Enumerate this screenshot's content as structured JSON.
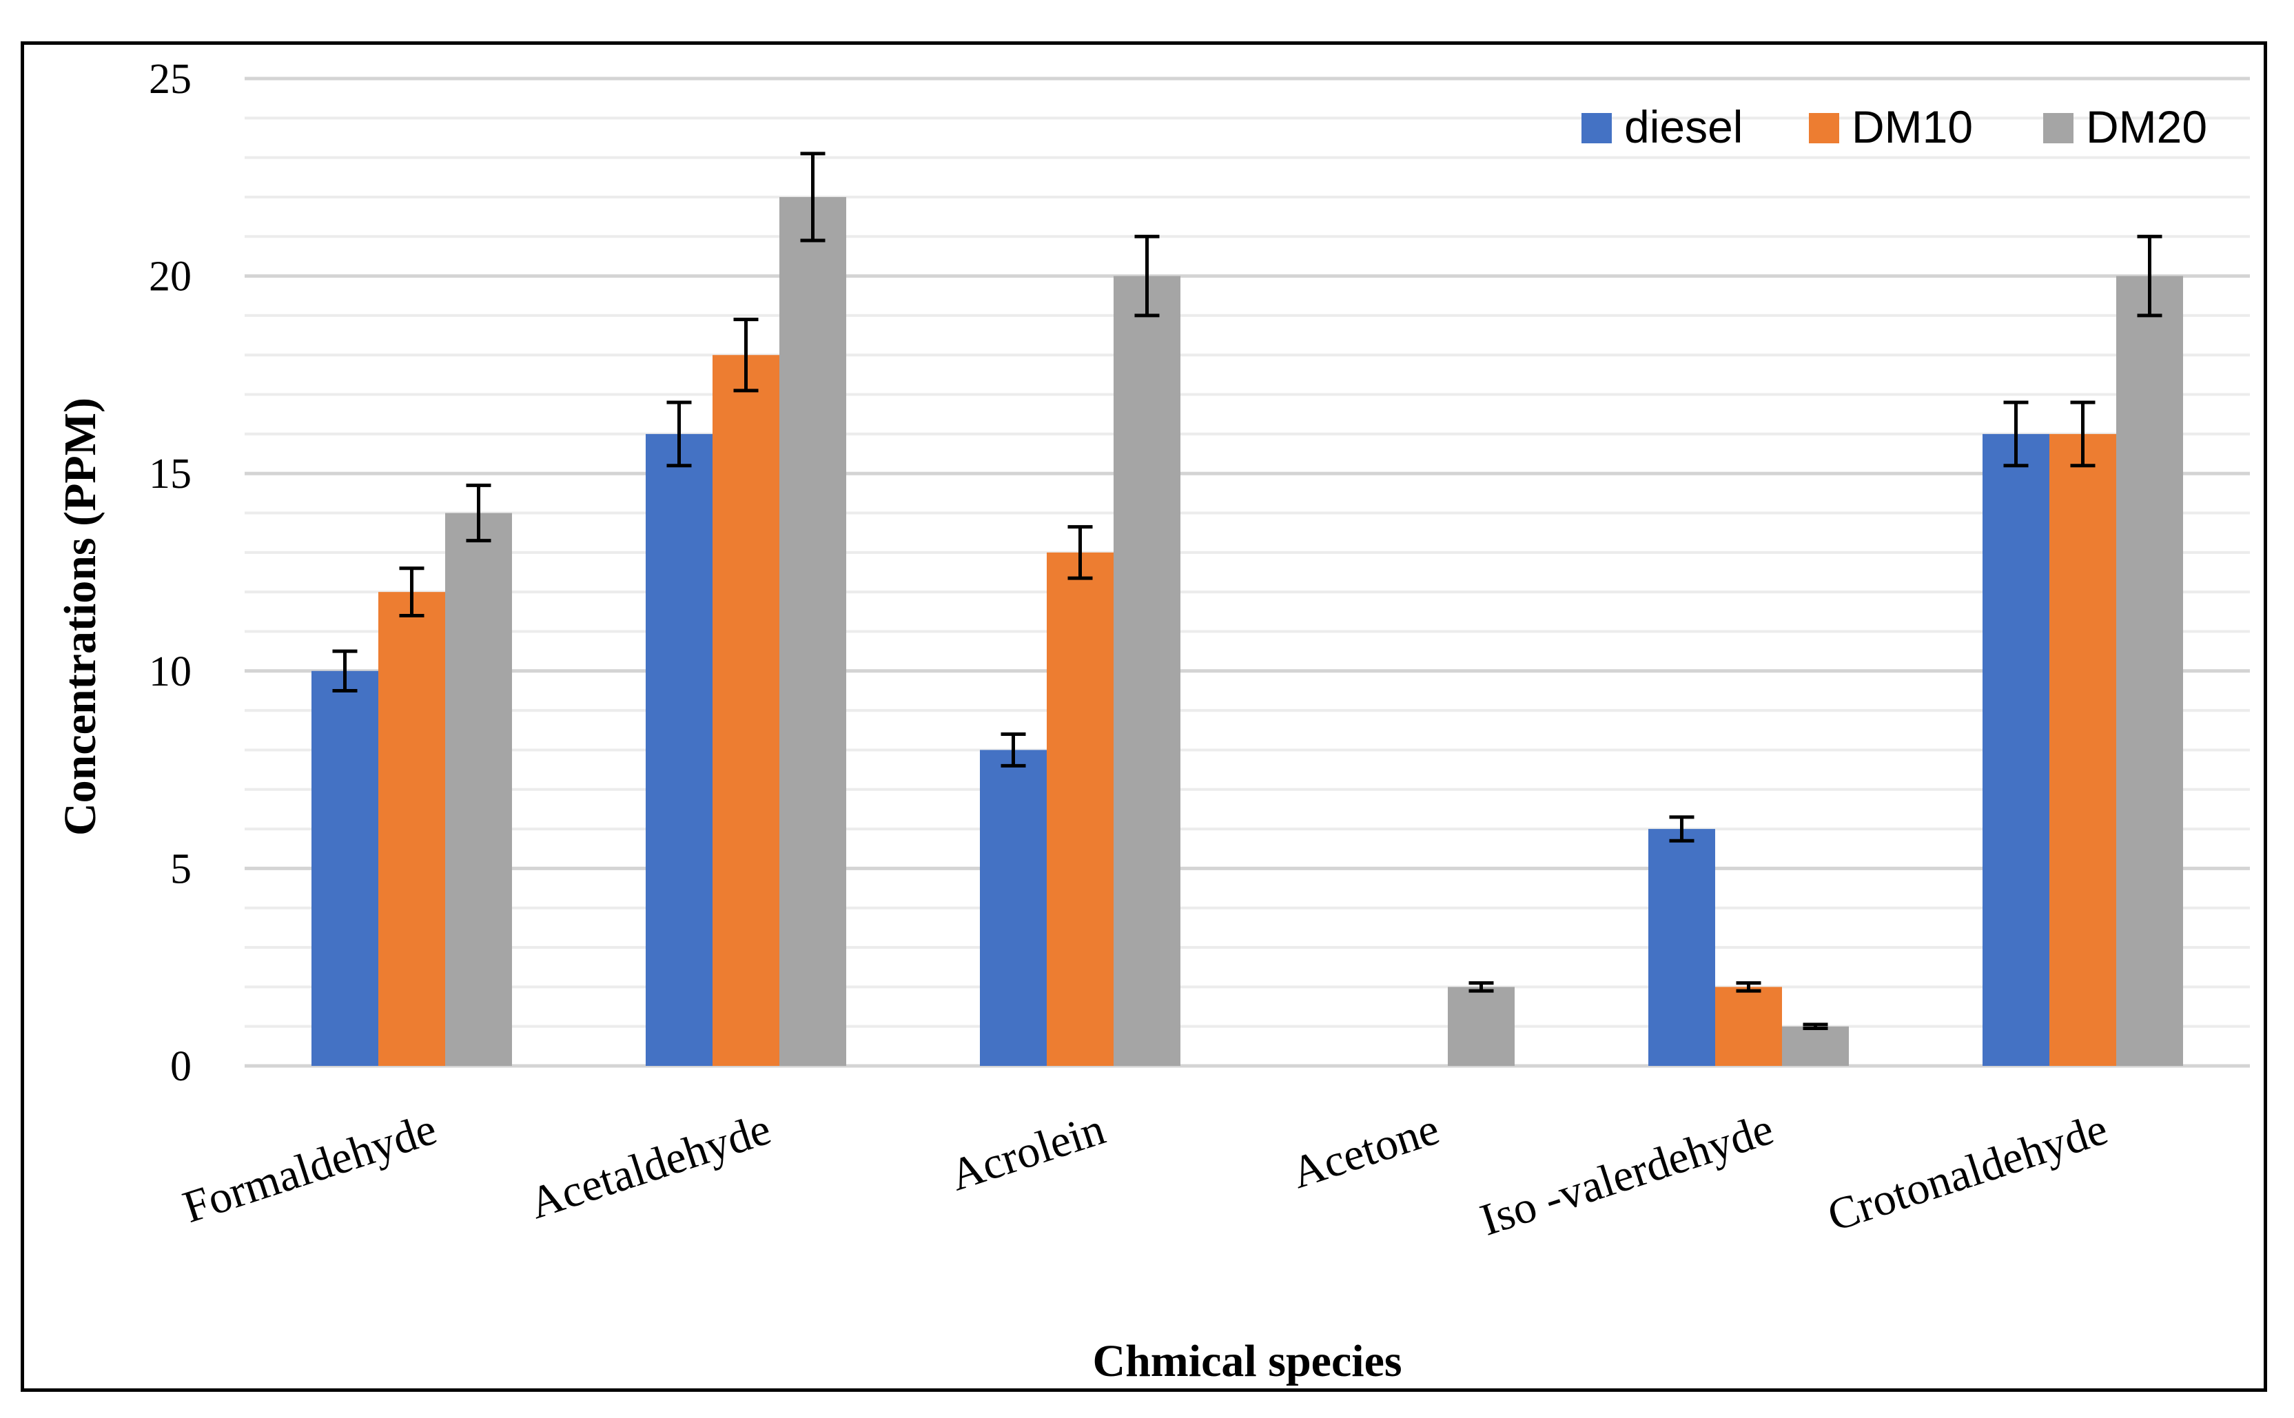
{
  "chart_data": {
    "type": "bar",
    "title": "",
    "xlabel": "Chmical species",
    "ylabel": "Concentrations (PPM)",
    "ylim": [
      0,
      25
    ],
    "yticks": [
      0,
      5,
      10,
      15,
      20,
      25
    ],
    "minor_grid_step": 1,
    "grid": true,
    "legend_position": "top-right",
    "categories": [
      "Formaldehyde",
      "Acetaldehyde",
      "Acrolein",
      "Acetone",
      "Iso -valerdehyde",
      "Crotonaldehyde"
    ],
    "series": [
      {
        "name": "diesel",
        "color": "#4472C4",
        "values": [
          10,
          16,
          8,
          0,
          6,
          16
        ],
        "errors": [
          0.5,
          0.8,
          0.4,
          0,
          0.3,
          0.8
        ]
      },
      {
        "name": "DM10",
        "color": "#ED7D31",
        "values": [
          12,
          18,
          13,
          0,
          2,
          16
        ],
        "errors": [
          0.6,
          0.9,
          0.65,
          0,
          0.1,
          0.8
        ]
      },
      {
        "name": "DM20",
        "color": "#A5A5A5",
        "values": [
          14,
          22,
          20,
          2,
          1,
          20
        ],
        "errors": [
          0.7,
          1.1,
          1.0,
          0.1,
          0.05,
          1.0
        ]
      }
    ]
  }
}
